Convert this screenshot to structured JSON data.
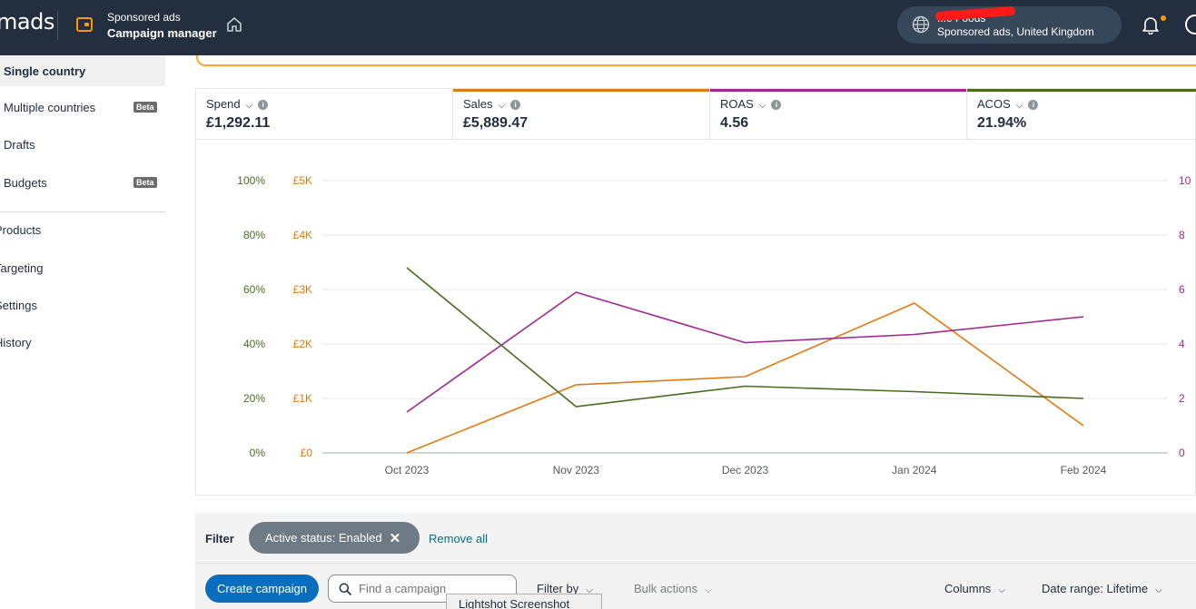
{
  "topbar": {
    "logo": "mads",
    "nav_sub": "Sponsored ads",
    "nav_main": "Campaign manager",
    "account_name": "...e Foods",
    "account_sub": "Sponsored ads, United Kingdom"
  },
  "sidebar": {
    "items": [
      {
        "label": "Single country",
        "active": true
      },
      {
        "label": "Multiple countries",
        "badge": "Beta"
      },
      {
        "label": "Drafts"
      },
      {
        "label": "Budgets",
        "badge": "Beta"
      },
      {
        "label": "Products"
      },
      {
        "label": "Targeting"
      },
      {
        "label": "Settings"
      },
      {
        "label": "History"
      }
    ]
  },
  "metrics": [
    {
      "label": "Spend",
      "value": "£1,292.11",
      "color": "#ffffff"
    },
    {
      "label": "Sales",
      "value": "£5,889.47",
      "color": "#e47911"
    },
    {
      "label": "ROAS",
      "value": "4.56",
      "color": "#a3268f"
    },
    {
      "label": "ACOS",
      "value": "21.94%",
      "color": "#4b6b1f"
    }
  ],
  "chart_data": {
    "type": "line",
    "categories": [
      "Oct 2023",
      "Nov 2023",
      "Dec 2023",
      "Jan 2024",
      "Feb 2024"
    ],
    "axes": {
      "acos_ticks": [
        "0%",
        "20%",
        "40%",
        "60%",
        "80%",
        "100%"
      ],
      "sales_ticks": [
        "£0",
        "£1K",
        "£2K",
        "£3K",
        "£4K",
        "£5K"
      ],
      "roas_ticks": [
        "0",
        "2",
        "4",
        "6",
        "8",
        "10"
      ],
      "acos_color": "#4b6b1f",
      "sales_color": "#e47911",
      "roas_color": "#a3268f"
    },
    "series": [
      {
        "name": "Sales",
        "axis": "sales",
        "ylim": [
          0,
          5000
        ],
        "color": "#e47911",
        "values": [
          0,
          1250,
          1400,
          2750,
          500
        ]
      },
      {
        "name": "ROAS",
        "axis": "roas",
        "ylim": [
          0,
          10
        ],
        "color": "#a3268f",
        "values": [
          1.5,
          5.9,
          4.05,
          4.35,
          5.0
        ]
      },
      {
        "name": "ACOS",
        "axis": "acos",
        "ylim": [
          0,
          100
        ],
        "color": "#4b6b1f",
        "values": [
          68,
          17,
          24.5,
          22.5,
          20
        ]
      }
    ],
    "grid": true
  },
  "filter": {
    "label": "Filter",
    "chip": "Active status: Enabled",
    "remove_all": "Remove all"
  },
  "toolbar": {
    "create": "Create campaign",
    "search_placeholder": "Find a campaign",
    "filter_by": "Filter by",
    "bulk_actions": "Bulk actions",
    "columns": "Columns",
    "date_range": "Date range: Lifetime"
  },
  "tooltip": "Lightshot Screenshot"
}
